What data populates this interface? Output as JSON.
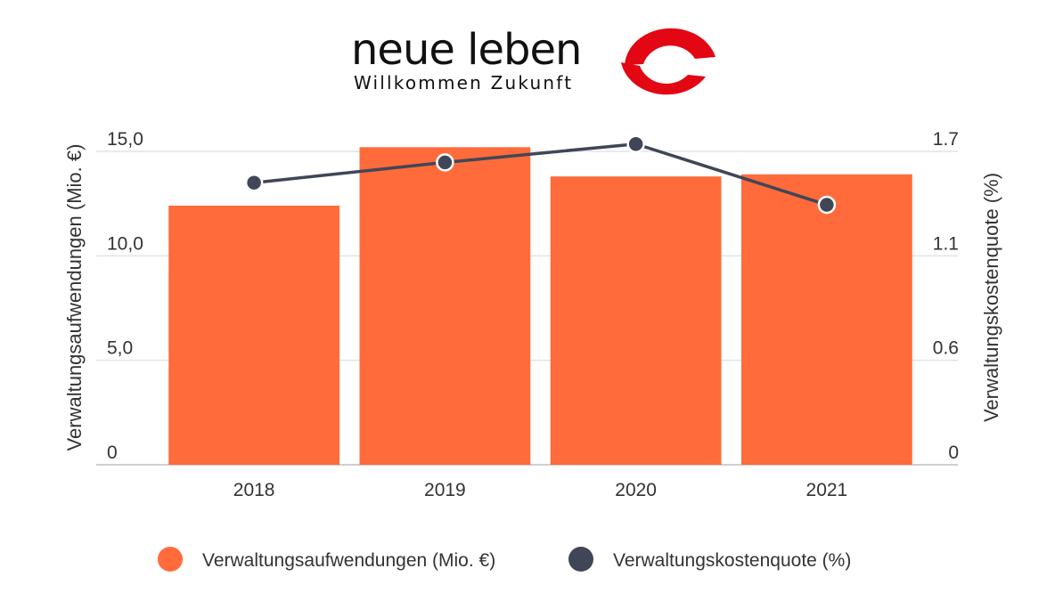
{
  "logo": {
    "name": "neue leben",
    "tagline": "Willkommen Zukunft"
  },
  "colors": {
    "bar": "#ff6b3a",
    "line": "#404657",
    "grid": "#e3e3e3",
    "logo_red": "#e30613"
  },
  "chart_data": {
    "type": "bar",
    "categories": [
      "2018",
      "2019",
      "2020",
      "2021"
    ],
    "series": [
      {
        "name": "Verwaltungsaufwendungen (Mio. €)",
        "type": "bar",
        "axis": "left",
        "values": [
          12.4,
          15.2,
          13.8,
          13.9
        ]
      },
      {
        "name": "Verwaltungskostenquote (%)",
        "type": "line",
        "axis": "right",
        "values": [
          1.53,
          1.64,
          1.74,
          1.41
        ]
      }
    ],
    "y_left": {
      "label": "Verwaltungsaufwendungen (Mio. €)",
      "ticks": [
        "0",
        "5,0",
        "10,0",
        "15,0"
      ],
      "range": [
        0,
        15
      ]
    },
    "y_right": {
      "label": "Verwaltungskostenquote (%)",
      "ticks": [
        "0",
        "0.6",
        "1.1",
        "1.7"
      ],
      "range": [
        0,
        1.7
      ]
    },
    "grid": true,
    "legend_position": "bottom"
  }
}
